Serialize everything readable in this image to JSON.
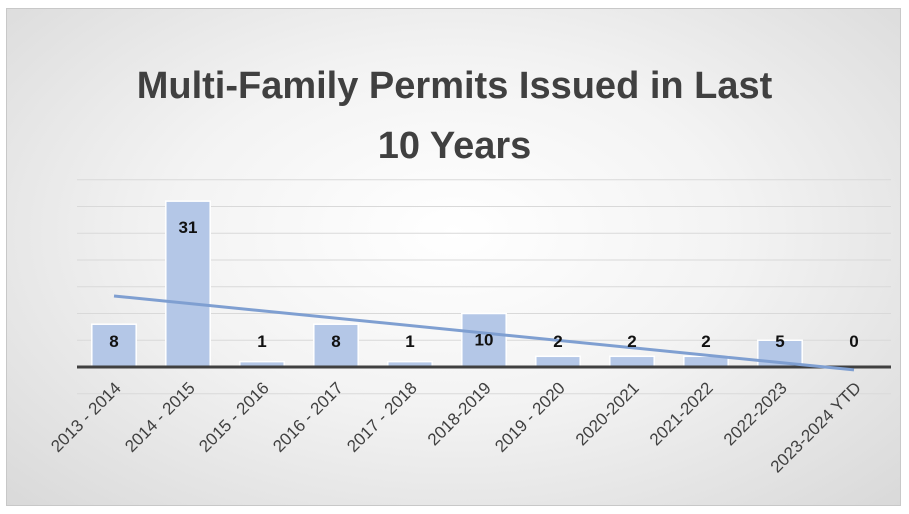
{
  "chart_data": {
    "type": "bar",
    "title_lines": [
      "Multi-Family Permits Issued in Last",
      "10 Years"
    ],
    "categories": [
      "2013 - 2014",
      "2014 - 2015",
      "2015 - 2016",
      "2016 - 2017",
      "2017 - 2018",
      "2018-2019",
      "2019 - 2020",
      "2020-2021",
      "2021-2022",
      "2022-2023",
      "2023-2024 YTD"
    ],
    "series": [
      {
        "values": [
          8,
          31,
          1,
          8,
          1,
          10,
          2,
          2,
          2,
          5,
          0
        ]
      }
    ],
    "trendline": {
      "type": "linear"
    },
    "ylim": [
      -5,
      35
    ],
    "grid": true,
    "legend": "none",
    "colors": {
      "bar_fill": "#b4c7e7",
      "bar_stroke": "#ffffff",
      "trendline": "#7f9fd1",
      "axis": "#404040",
      "grid": "#d9d9d9"
    }
  }
}
